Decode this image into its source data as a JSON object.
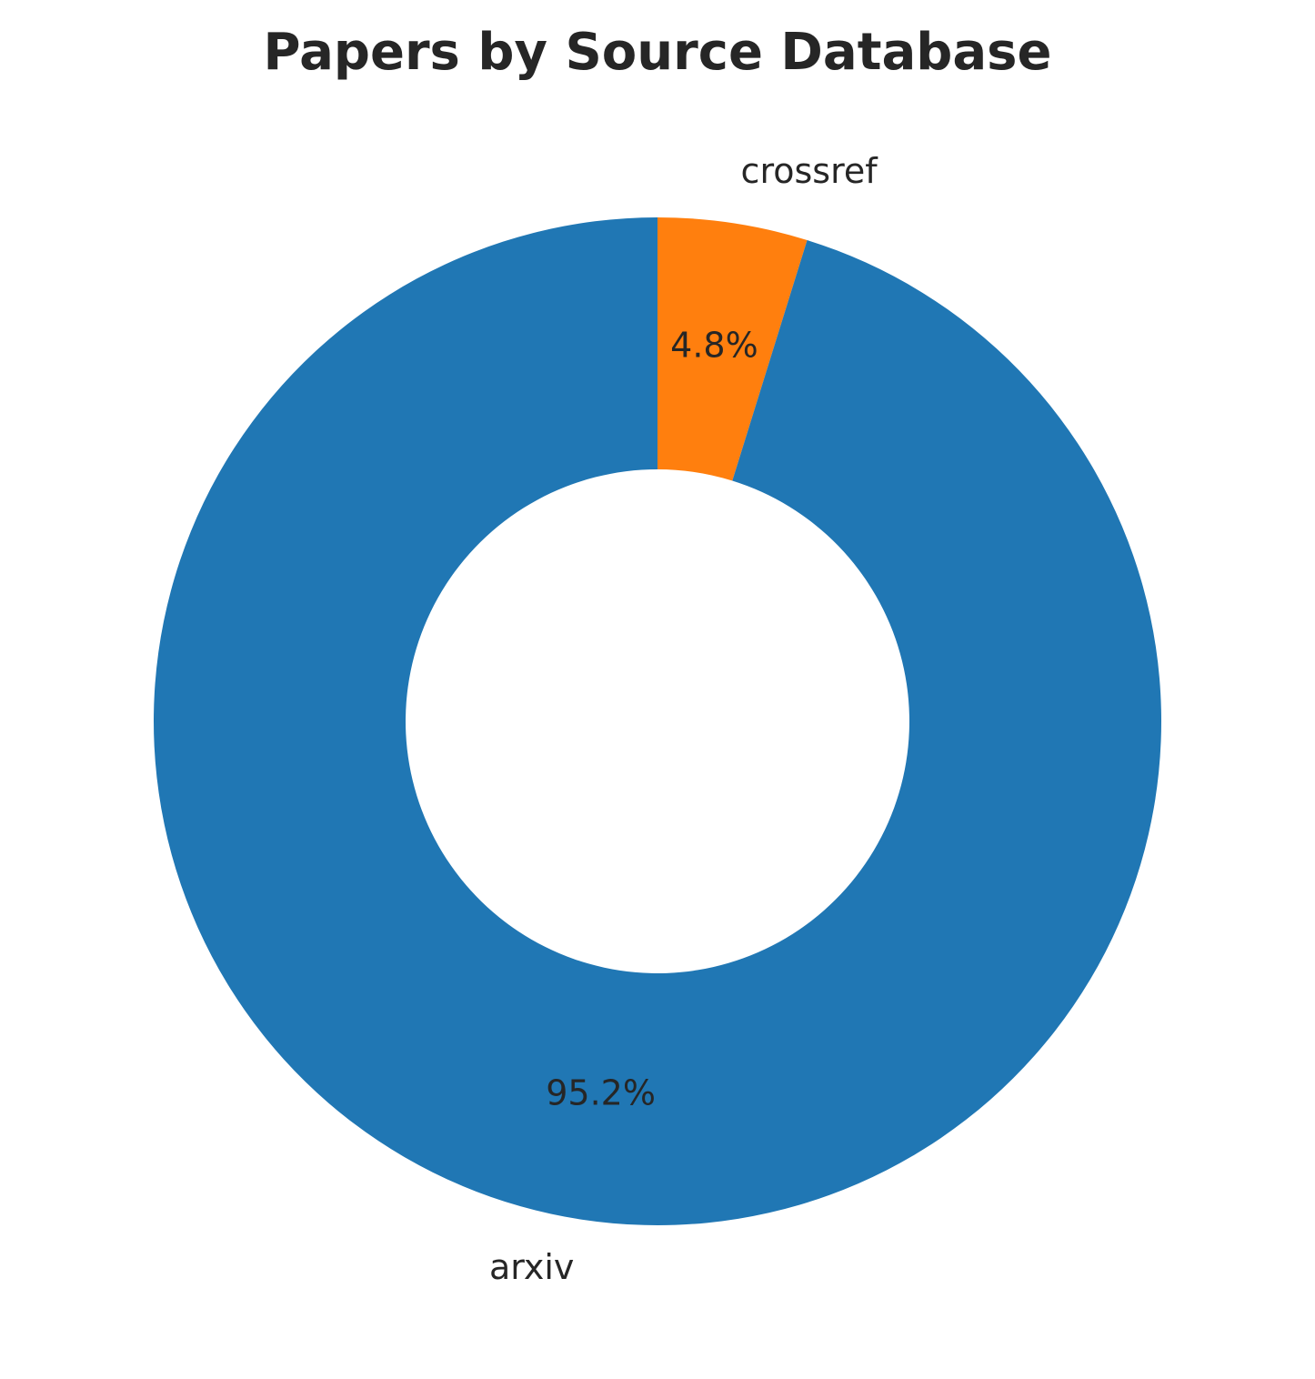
{
  "chart_data": {
    "type": "pie",
    "donut": true,
    "title": "Papers by Source Database",
    "start": "top",
    "direction": "clockwise",
    "slices": [
      {
        "label": "crossref",
        "value": 4.8,
        "percent_label": "4.8%",
        "color": "#ff7f0e"
      },
      {
        "label": "arxiv",
        "value": 95.2,
        "percent_label": "95.2%",
        "color": "#2077b4"
      }
    ]
  }
}
